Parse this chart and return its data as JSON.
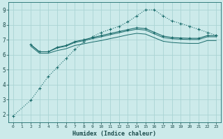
{
  "xlabel": "Humidex (Indice chaleur)",
  "bg_color": "#cceaea",
  "grid_color": "#aad4d4",
  "line_color": "#1a6b6b",
  "xlim": [
    -0.5,
    23.5
  ],
  "ylim": [
    1.5,
    9.5
  ],
  "xticks": [
    0,
    1,
    2,
    3,
    4,
    5,
    6,
    7,
    8,
    9,
    10,
    11,
    12,
    13,
    14,
    15,
    16,
    17,
    18,
    19,
    20,
    21,
    22,
    23
  ],
  "yticks": [
    2,
    3,
    4,
    5,
    6,
    7,
    8,
    9
  ],
  "series": {
    "line1": {
      "x": [
        0,
        2,
        3,
        4,
        5,
        6,
        7,
        8,
        9,
        10,
        11,
        12,
        13,
        14,
        15,
        16,
        17,
        18,
        19,
        20,
        21,
        22,
        23
      ],
      "y": [
        1.9,
        2.95,
        3.75,
        4.55,
        5.15,
        5.75,
        6.35,
        6.85,
        7.2,
        7.5,
        7.7,
        7.9,
        8.2,
        8.6,
        9.0,
        9.0,
        8.6,
        8.25,
        8.1,
        7.9,
        7.7,
        7.5,
        7.3
      ],
      "marker": true,
      "linestyle": "dotted"
    },
    "line2": {
      "x": [
        2,
        3,
        4,
        5,
        6,
        7,
        8,
        9,
        10,
        11,
        12,
        13,
        14,
        15,
        16,
        17,
        18,
        19,
        20,
        21,
        22,
        23
      ],
      "y": [
        6.68,
        6.2,
        6.2,
        6.5,
        6.62,
        6.88,
        7.0,
        7.15,
        7.28,
        7.42,
        7.55,
        7.68,
        7.8,
        7.75,
        7.5,
        7.25,
        7.15,
        7.12,
        7.1,
        7.1,
        7.28,
        7.28
      ],
      "marker": true,
      "linestyle": "solid"
    },
    "line3": {
      "x": [
        2,
        3,
        4,
        5,
        6,
        7,
        8,
        9,
        10,
        11,
        12,
        13,
        14,
        15,
        16,
        17,
        18,
        19,
        20,
        21,
        22,
        23
      ],
      "y": [
        6.68,
        6.2,
        6.2,
        6.45,
        6.57,
        6.82,
        6.94,
        7.08,
        7.2,
        7.34,
        7.47,
        7.6,
        7.7,
        7.65,
        7.4,
        7.15,
        7.07,
        7.04,
        7.02,
        7.02,
        7.2,
        7.2
      ],
      "marker": false,
      "linestyle": "solid"
    },
    "line4": {
      "x": [
        2,
        3,
        4,
        5,
        6,
        7,
        8,
        9,
        10,
        11,
        12,
        13,
        14,
        15,
        16,
        17,
        18,
        19,
        20,
        21,
        22,
        23
      ],
      "y": [
        6.58,
        6.1,
        6.1,
        6.28,
        6.4,
        6.62,
        6.73,
        6.85,
        6.95,
        7.08,
        7.2,
        7.33,
        7.43,
        7.38,
        7.14,
        6.9,
        6.82,
        6.78,
        6.76,
        6.76,
        6.95,
        6.95
      ],
      "marker": false,
      "linestyle": "solid"
    }
  }
}
